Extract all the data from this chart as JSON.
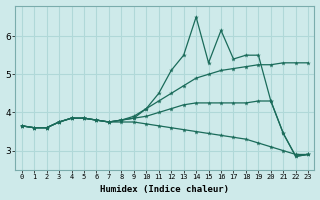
{
  "xlabel": "Humidex (Indice chaleur)",
  "bg_color": "#ceeaea",
  "grid_color": "#b0d8d8",
  "line_color": "#1a6b5a",
  "xlim": [
    -0.5,
    23.5
  ],
  "ylim": [
    2.5,
    6.8
  ],
  "xticks": [
    0,
    1,
    2,
    3,
    4,
    5,
    6,
    7,
    8,
    9,
    10,
    11,
    12,
    13,
    14,
    15,
    16,
    17,
    18,
    19,
    20,
    21,
    22,
    23
  ],
  "yticks": [
    3,
    4,
    5,
    6
  ],
  "line_volatile": [
    3.65,
    3.6,
    3.6,
    3.75,
    3.85,
    3.85,
    3.8,
    3.75,
    3.8,
    3.85,
    4.1,
    4.5,
    5.1,
    5.5,
    6.5,
    5.3,
    6.15,
    5.4,
    5.5,
    5.5,
    4.3,
    3.45,
    2.85,
    2.9
  ],
  "line_upper": [
    3.65,
    3.6,
    3.6,
    3.75,
    3.85,
    3.85,
    3.8,
    3.75,
    3.8,
    3.9,
    4.1,
    4.3,
    4.5,
    4.7,
    4.9,
    5.0,
    5.1,
    5.15,
    5.2,
    5.25,
    5.25,
    5.3,
    5.3,
    5.3
  ],
  "line_middle": [
    3.65,
    3.6,
    3.6,
    3.75,
    3.85,
    3.85,
    3.8,
    3.75,
    3.8,
    3.85,
    3.9,
    4.0,
    4.1,
    4.2,
    4.25,
    4.25,
    4.25,
    4.25,
    4.25,
    4.3,
    4.3,
    3.45,
    2.85,
    2.9
  ],
  "line_bottom": [
    3.65,
    3.6,
    3.6,
    3.75,
    3.85,
    3.85,
    3.8,
    3.75,
    3.75,
    3.75,
    3.7,
    3.65,
    3.6,
    3.55,
    3.5,
    3.45,
    3.4,
    3.35,
    3.3,
    3.2,
    3.1,
    3.0,
    2.9,
    2.9
  ]
}
